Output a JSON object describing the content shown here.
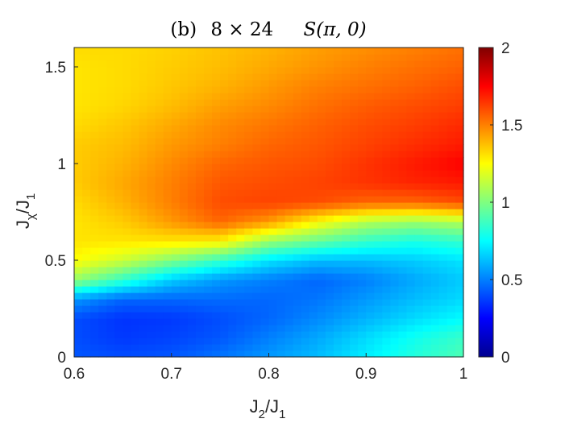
{
  "chart_data": {
    "type": "heatmap",
    "title": {
      "panel": "(b)",
      "lattice": "8 × 24",
      "quantity": "S(π, 0)"
    },
    "xlabel": {
      "main": "J",
      "sub1": "2",
      "slash": "/J",
      "sub2": "1"
    },
    "ylabel": {
      "main": "J",
      "sub1": "χ",
      "slash": "/J",
      "sub2": "1"
    },
    "xlim": [
      0.6,
      1.0
    ],
    "ylim": [
      0,
      1.6
    ],
    "xticks": [
      "0.6",
      "0.7",
      "0.8",
      "0.9",
      "1"
    ],
    "yticks": [
      "0",
      "0.5",
      "1",
      "1.5"
    ],
    "colorbar": {
      "colormap": "jet",
      "clim": [
        0,
        2
      ],
      "ticks": [
        "0",
        "0.5",
        "1",
        "1.5",
        "2"
      ]
    },
    "grid": false,
    "x": [
      0.6,
      0.65,
      0.7,
      0.75,
      0.8,
      0.85,
      0.9,
      0.95,
      1.0
    ],
    "y": [
      0.0,
      0.1,
      0.2,
      0.3,
      0.4,
      0.5,
      0.6,
      0.7,
      0.8,
      0.9,
      1.0,
      1.1,
      1.2,
      1.3,
      1.4,
      1.5,
      1.6
    ],
    "z": [
      [
        0.42,
        0.4,
        0.42,
        0.48,
        0.55,
        0.62,
        0.72,
        0.82,
        0.9
      ],
      [
        0.4,
        0.36,
        0.38,
        0.42,
        0.5,
        0.58,
        0.68,
        0.78,
        0.86
      ],
      [
        0.4,
        0.35,
        0.36,
        0.4,
        0.45,
        0.52,
        0.6,
        0.68,
        0.75
      ],
      [
        0.55,
        0.45,
        0.45,
        0.46,
        0.45,
        0.48,
        0.55,
        0.62,
        0.68
      ],
      [
        1.05,
        0.85,
        0.65,
        0.55,
        0.5,
        0.45,
        0.5,
        0.58,
        0.65
      ],
      [
        1.25,
        1.15,
        1.0,
        0.85,
        0.7,
        0.62,
        0.62,
        0.65,
        0.7
      ],
      [
        1.3,
        1.3,
        1.3,
        1.28,
        1.05,
        0.95,
        0.85,
        0.8,
        0.85
      ],
      [
        1.3,
        1.35,
        1.45,
        1.55,
        1.45,
        1.25,
        1.1,
        1.05,
        1.1
      ],
      [
        1.32,
        1.4,
        1.5,
        1.6,
        1.62,
        1.6,
        1.55,
        1.55,
        1.6
      ],
      [
        1.35,
        1.42,
        1.5,
        1.58,
        1.6,
        1.62,
        1.65,
        1.68,
        1.7
      ],
      [
        1.35,
        1.4,
        1.48,
        1.55,
        1.58,
        1.6,
        1.65,
        1.7,
        1.75
      ],
      [
        1.35,
        1.38,
        1.45,
        1.5,
        1.55,
        1.58,
        1.62,
        1.66,
        1.7
      ],
      [
        1.32,
        1.36,
        1.42,
        1.48,
        1.52,
        1.56,
        1.6,
        1.63,
        1.67
      ],
      [
        1.3,
        1.33,
        1.38,
        1.44,
        1.48,
        1.53,
        1.57,
        1.6,
        1.63
      ],
      [
        1.3,
        1.32,
        1.36,
        1.4,
        1.45,
        1.5,
        1.53,
        1.56,
        1.6
      ],
      [
        1.3,
        1.32,
        1.35,
        1.38,
        1.42,
        1.46,
        1.5,
        1.53,
        1.56
      ],
      [
        1.32,
        1.32,
        1.34,
        1.37,
        1.4,
        1.44,
        1.47,
        1.5,
        1.53
      ]
    ]
  }
}
